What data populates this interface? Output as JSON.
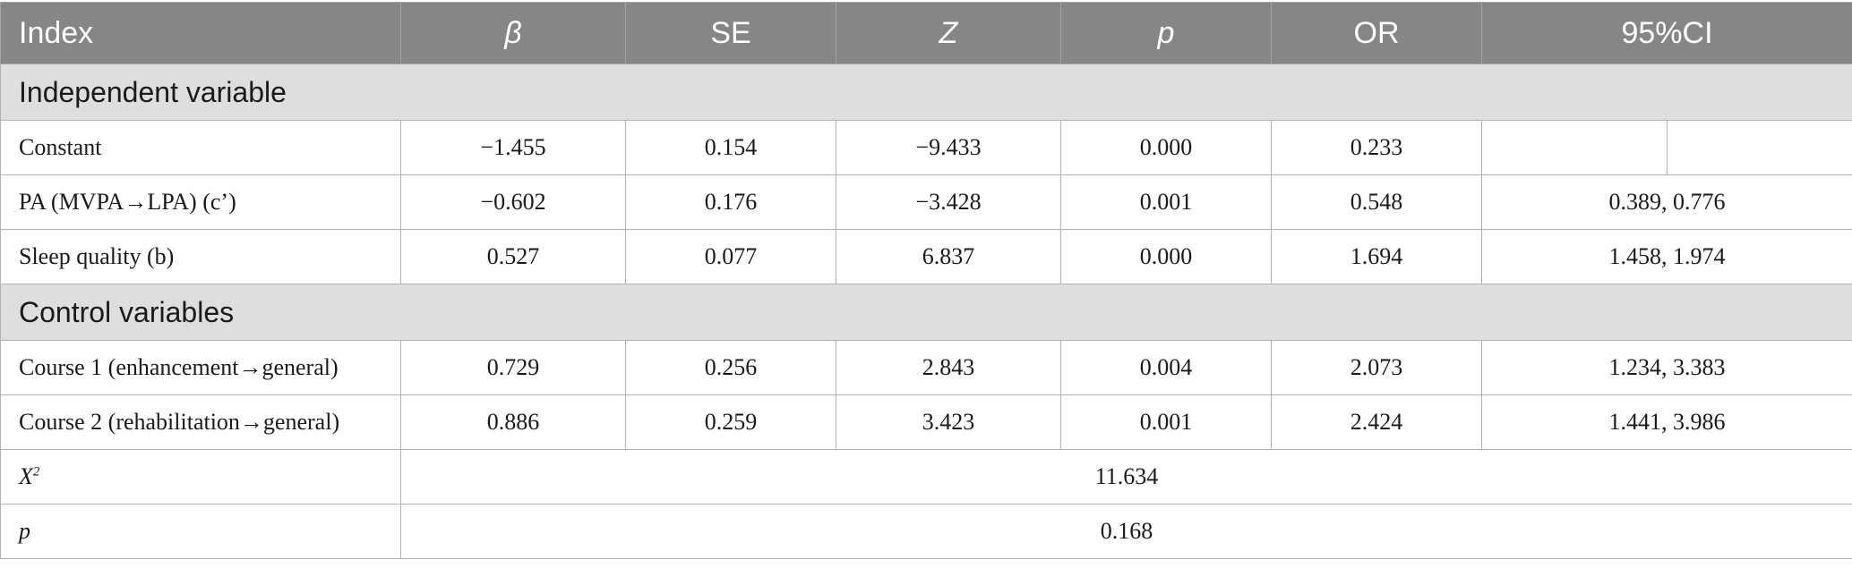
{
  "headers": [
    "Index",
    "β",
    "SE",
    "Z",
    "p",
    "OR",
    "95%CI"
  ],
  "sections": [
    {
      "title": "Independent variable",
      "rows": [
        {
          "label": "Constant",
          "beta": "−1.455",
          "se": "0.154",
          "z": "−9.433",
          "p": "0.000",
          "or": "0.233",
          "ci": ""
        },
        {
          "label": "PA (MVPA→LPA) (c’)",
          "beta": "−0.602",
          "se": "0.176",
          "z": "−3.428",
          "p": "0.001",
          "or": "0.548",
          "ci": "0.389, 0.776"
        },
        {
          "label": "Sleep quality (b)",
          "beta": "0.527",
          "se": "0.077",
          "z": "6.837",
          "p": "0.000",
          "or": "1.694",
          "ci": "1.458, 1.974"
        }
      ]
    },
    {
      "title": "Control variables",
      "rows": [
        {
          "label": "Course 1 (enhancement→general)",
          "beta": "0.729",
          "se": "0.256",
          "z": "2.843",
          "p": "0.004",
          "or": "2.073",
          "ci": "1.234, 3.383"
        },
        {
          "label": "Course 2 (rehabilitation→general)",
          "beta": "0.886",
          "se": "0.259",
          "z": "3.423",
          "p": "0.001",
          "or": "2.424",
          "ci": "1.441, 3.986"
        }
      ]
    }
  ],
  "footer": [
    {
      "label": "X",
      "sup": "2",
      "value": "11.634"
    },
    {
      "label": "p",
      "value": "0.168"
    }
  ]
}
